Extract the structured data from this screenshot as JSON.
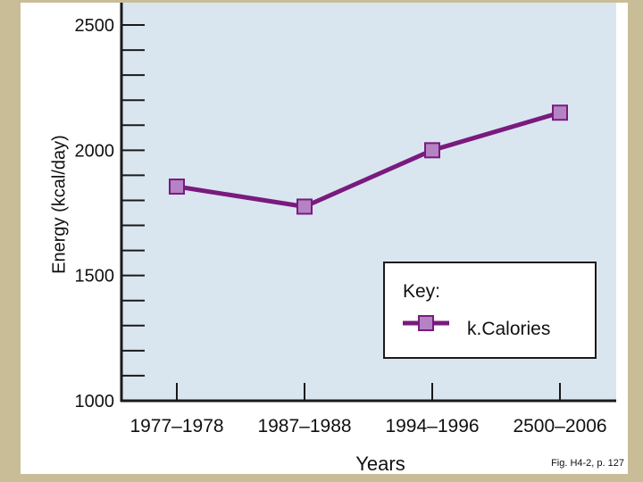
{
  "chart_data": {
    "type": "line",
    "title": "",
    "xlabel": "Years",
    "ylabel": "Energy (kcal/day)",
    "categories": [
      "1977–1978",
      "1987–1988",
      "1994–1996",
      "2500–2006"
    ],
    "series": [
      {
        "name": "k.Calories",
        "values": [
          1855,
          1775,
          2000,
          2150
        ]
      }
    ],
    "ylim": [
      1000,
      2500
    ],
    "yticks": [
      "1000",
      "1500",
      "2000",
      "2500"
    ],
    "minor_tick_step": 100,
    "grid": false,
    "legend": {
      "title": "Key:",
      "position": "bottom-right"
    },
    "colors": {
      "plot_background": "#d9e6f0",
      "line": "#7a1a7e",
      "marker_fill": "#b583c4"
    }
  },
  "caption": "Fig. H4-2, p. 127"
}
